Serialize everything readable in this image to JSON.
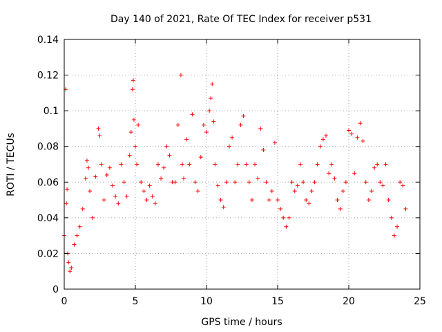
{
  "chart_data": {
    "type": "scatter",
    "title": "Day 140 of 2021, Rate Of TEC Index for receiver p531",
    "xlabel": "GPS time / hours",
    "ylabel": "ROTI / TECUs",
    "xlim": [
      0,
      25
    ],
    "ylim": [
      0,
      0.14
    ],
    "x_ticks": [
      0,
      5,
      10,
      15,
      20,
      25
    ],
    "y_ticks": [
      0,
      0.02,
      0.04,
      0.06,
      0.08,
      0.1,
      0.12,
      0.14
    ],
    "x_tick_labels": [
      "0",
      "5",
      "10",
      "15",
      "20",
      "25"
    ],
    "y_tick_labels": [
      "0",
      "0.02",
      "0.04",
      "0.06",
      "0.08",
      "0.1",
      "0.12",
      "0.14"
    ],
    "grid": true,
    "marker": "+",
    "color": "#ff0000",
    "series": [
      {
        "x": [
          0.0,
          0.1,
          0.15,
          0.2,
          0.25,
          0.3,
          0.4,
          0.5,
          0.7,
          0.9,
          1.1,
          1.3,
          1.5,
          1.6,
          1.7,
          1.8,
          2.0,
          2.2,
          2.4,
          2.5,
          2.6,
          2.8,
          3.0,
          3.2,
          3.4,
          3.6,
          3.8,
          4.0,
          4.2,
          4.4,
          4.6,
          4.7,
          4.8,
          4.85,
          4.9,
          5.0,
          5.1,
          5.2,
          5.4,
          5.6,
          5.8,
          6.0,
          6.2,
          6.4,
          6.6,
          6.8,
          7.0,
          7.2,
          7.4,
          7.6,
          7.8,
          8.0,
          8.2,
          8.3,
          8.4,
          8.6,
          8.8,
          9.0,
          9.2,
          9.4,
          9.6,
          9.8,
          10.0,
          10.2,
          10.3,
          10.4,
          10.5,
          10.6,
          10.8,
          11.0,
          11.2,
          11.4,
          11.6,
          11.8,
          12.0,
          12.2,
          12.4,
          12.6,
          12.8,
          13.0,
          13.2,
          13.4,
          13.6,
          13.8,
          14.0,
          14.2,
          14.4,
          14.6,
          14.8,
          15.0,
          15.2,
          15.4,
          15.6,
          15.8,
          16.0,
          16.2,
          16.4,
          16.6,
          16.8,
          17.0,
          17.2,
          17.4,
          17.6,
          17.8,
          18.0,
          18.2,
          18.4,
          18.6,
          18.8,
          19.0,
          19.2,
          19.4,
          19.6,
          19.8,
          20.0,
          20.2,
          20.4,
          20.6,
          20.8,
          21.0,
          21.2,
          21.4,
          21.6,
          21.8,
          22.0,
          22.2,
          22.4,
          22.6,
          22.8,
          23.0,
          23.2,
          23.4,
          23.6,
          23.8,
          24.0
        ],
        "y": [
          0.03,
          0.112,
          0.048,
          0.056,
          0.02,
          0.015,
          0.01,
          0.012,
          0.025,
          0.03,
          0.035,
          0.045,
          0.062,
          0.072,
          0.068,
          0.055,
          0.04,
          0.063,
          0.09,
          0.086,
          0.07,
          0.05,
          0.064,
          0.068,
          0.058,
          0.052,
          0.048,
          0.07,
          0.06,
          0.052,
          0.075,
          0.088,
          0.112,
          0.117,
          0.095,
          0.08,
          0.07,
          0.092,
          0.06,
          0.055,
          0.05,
          0.058,
          0.052,
          0.048,
          0.07,
          0.062,
          0.068,
          0.08,
          0.075,
          0.06,
          0.06,
          0.092,
          0.12,
          0.07,
          0.062,
          0.084,
          0.07,
          0.098,
          0.06,
          0.055,
          0.074,
          0.092,
          0.088,
          0.1,
          0.107,
          0.115,
          0.094,
          0.07,
          0.058,
          0.05,
          0.046,
          0.06,
          0.08,
          0.085,
          0.06,
          0.07,
          0.092,
          0.097,
          0.07,
          0.06,
          0.05,
          0.07,
          0.062,
          0.09,
          0.078,
          0.06,
          0.05,
          0.055,
          0.082,
          0.05,
          0.045,
          0.04,
          0.035,
          0.04,
          0.06,
          0.055,
          0.058,
          0.07,
          0.06,
          0.05,
          0.048,
          0.055,
          0.06,
          0.07,
          0.08,
          0.084,
          0.086,
          0.065,
          0.07,
          0.062,
          0.05,
          0.045,
          0.055,
          0.06,
          0.089,
          0.087,
          0.065,
          0.085,
          0.093,
          0.083,
          0.06,
          0.05,
          0.055,
          0.068,
          0.07,
          0.06,
          0.058,
          0.07,
          0.05,
          0.04,
          0.03,
          0.035,
          0.06,
          0.058,
          0.045
        ]
      }
    ]
  }
}
